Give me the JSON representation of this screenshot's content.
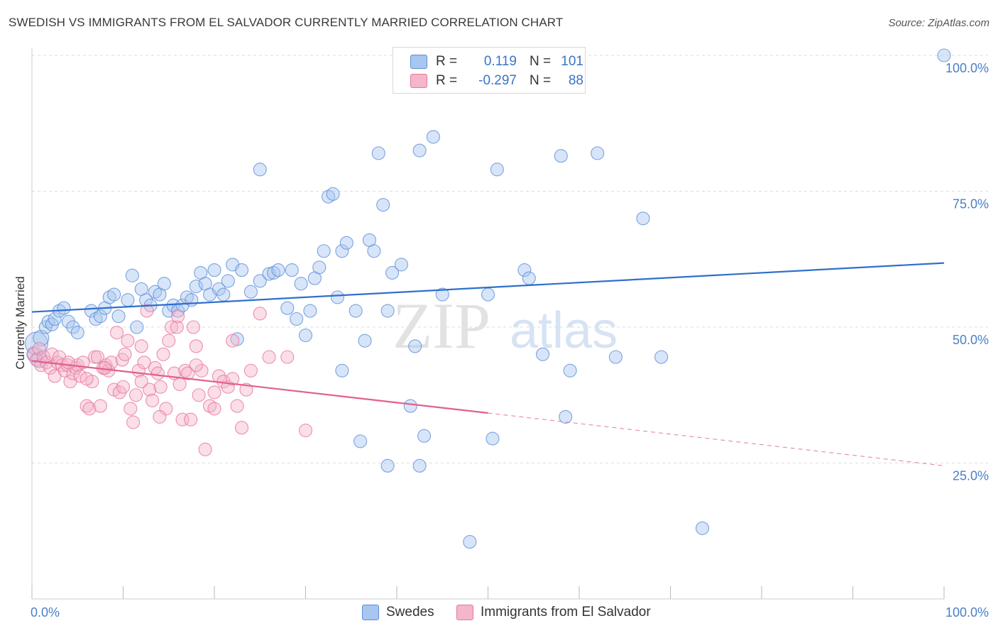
{
  "header": {
    "title": "SWEDISH VS IMMIGRANTS FROM EL SALVADOR CURRENTLY MARRIED CORRELATION CHART",
    "source": "Source: ZipAtlas.com"
  },
  "watermark": {
    "zip": "ZIP",
    "atlas": "atlas"
  },
  "legend": {
    "rows": [
      {
        "r_label": "R =",
        "r_value": "0.119",
        "n_label": "N =",
        "n_value": "101",
        "color": "#a8c6ef"
      },
      {
        "r_label": "R =",
        "r_value": "-0.297",
        "n_label": "N =",
        "n_value": "88",
        "color": "#f4b6cb"
      }
    ]
  },
  "bottom_legend": [
    {
      "label": "Swedes",
      "color": "#a8c6ef"
    },
    {
      "label": "Immigrants from El Salvador",
      "color": "#f4b6cb"
    }
  ],
  "chart_data": {
    "type": "scatter",
    "title": "SWEDISH VS IMMIGRANTS FROM EL SALVADOR CURRENTLY MARRIED CORRELATION CHART",
    "ylabel": "Currently Married",
    "xlabel": "",
    "xlim": [
      0,
      100
    ],
    "ylim": [
      0,
      100
    ],
    "x_tick_labels": [
      "0.0%",
      "100.0%"
    ],
    "y_ticks": [
      25,
      50,
      75,
      100
    ],
    "y_tick_labels": [
      "25.0%",
      "50.0%",
      "75.0%",
      "100.0%"
    ],
    "grid": "horizontal dashed",
    "legend_position": "top-center",
    "series": [
      {
        "name": "Swedes",
        "color": "#5b8fd8",
        "fill": "#a8c6ef",
        "trend": {
          "x": [
            0,
            100
          ],
          "y": [
            52.8,
            61.8
          ],
          "color": "#2f6fcc"
        },
        "points": [
          [
            0.3,
            45
          ],
          [
            0.5,
            47
          ],
          [
            0.8,
            44
          ],
          [
            1.0,
            48
          ],
          [
            1.5,
            50
          ],
          [
            1.8,
            51
          ],
          [
            2.2,
            50.5
          ],
          [
            2.5,
            51.5
          ],
          [
            3.0,
            53
          ],
          [
            3.5,
            53.5
          ],
          [
            4.0,
            51
          ],
          [
            4.5,
            50
          ],
          [
            5.0,
            49
          ],
          [
            6.5,
            53
          ],
          [
            7.0,
            51.5
          ],
          [
            7.5,
            52
          ],
          [
            8.0,
            53.5
          ],
          [
            8.5,
            55.5
          ],
          [
            9.0,
            56
          ],
          [
            9.5,
            52
          ],
          [
            10.5,
            55
          ],
          [
            11.0,
            59.5
          ],
          [
            11.5,
            50
          ],
          [
            12.0,
            57
          ],
          [
            12.5,
            55
          ],
          [
            13.0,
            54
          ],
          [
            13.5,
            56.5
          ],
          [
            14.0,
            56
          ],
          [
            14.5,
            58
          ],
          [
            15.0,
            53
          ],
          [
            15.5,
            54
          ],
          [
            16.0,
            53
          ],
          [
            16.5,
            54
          ],
          [
            17.0,
            55.5
          ],
          [
            17.5,
            55
          ],
          [
            18.0,
            57.5
          ],
          [
            18.5,
            60
          ],
          [
            19.0,
            58
          ],
          [
            19.5,
            56
          ],
          [
            20.0,
            60.5
          ],
          [
            20.5,
            57
          ],
          [
            21.0,
            56
          ],
          [
            21.5,
            58.5
          ],
          [
            22.0,
            61.5
          ],
          [
            22.5,
            47.8
          ],
          [
            23.0,
            60.5
          ],
          [
            24.0,
            56.5
          ],
          [
            25.0,
            58.5
          ],
          [
            26.0,
            59.8
          ],
          [
            26.5,
            60
          ],
          [
            27.0,
            60.5
          ],
          [
            28.0,
            53.5
          ],
          [
            28.5,
            60.5
          ],
          [
            29.0,
            51.5
          ],
          [
            29.5,
            58
          ],
          [
            30.0,
            48.5
          ],
          [
            30.5,
            53
          ],
          [
            31.0,
            59
          ],
          [
            31.5,
            61
          ],
          [
            32.0,
            64
          ],
          [
            32.5,
            74
          ],
          [
            33.0,
            74.5
          ],
          [
            33.5,
            55.5
          ],
          [
            34.0,
            64
          ],
          [
            34.5,
            65.5
          ],
          [
            35.5,
            53
          ],
          [
            36.5,
            47.5
          ],
          [
            37.0,
            66
          ],
          [
            37.5,
            64
          ],
          [
            38.0,
            82
          ],
          [
            38.5,
            72.5
          ],
          [
            39.0,
            53
          ],
          [
            39.5,
            60
          ],
          [
            40.5,
            61.5
          ],
          [
            41.5,
            35.5
          ],
          [
            42.0,
            46.5
          ],
          [
            42.5,
            82.5
          ],
          [
            43.0,
            30
          ],
          [
            44.0,
            85
          ],
          [
            45.0,
            56
          ],
          [
            48.0,
            10.5
          ],
          [
            50.0,
            56
          ],
          [
            50.5,
            29.5
          ],
          [
            51.0,
            79
          ],
          [
            54.0,
            60.5
          ],
          [
            54.5,
            59
          ],
          [
            56.0,
            45
          ],
          [
            58.0,
            81.5
          ],
          [
            58.5,
            33.5
          ],
          [
            59.0,
            42
          ],
          [
            62.0,
            82
          ],
          [
            64.0,
            44.5
          ],
          [
            67.0,
            70
          ],
          [
            69.0,
            44.5
          ],
          [
            73.5,
            13
          ],
          [
            100.0,
            100
          ],
          [
            25.0,
            79
          ],
          [
            34.0,
            42
          ],
          [
            36.0,
            29
          ],
          [
            39.0,
            24.5
          ],
          [
            42.5,
            24.5
          ]
        ]
      },
      {
        "name": "Immigrants from El Salvador",
        "color": "#e8769d",
        "fill": "#f4b6cb",
        "trend": {
          "x": [
            0,
            50
          ],
          "y": [
            43.8,
            34.2
          ],
          "color": "#e0608e"
        },
        "trend_extension": {
          "x": [
            50,
            100
          ],
          "y": [
            34.2,
            24.5
          ]
        },
        "points": [
          [
            0.2,
            45
          ],
          [
            0.5,
            44
          ],
          [
            0.8,
            46
          ],
          [
            1.0,
            43
          ],
          [
            1.3,
            44.5
          ],
          [
            1.6,
            43.5
          ],
          [
            2.0,
            42.5
          ],
          [
            2.2,
            45
          ],
          [
            2.5,
            41
          ],
          [
            2.8,
            43.5
          ],
          [
            3.0,
            44.5
          ],
          [
            3.3,
            43
          ],
          [
            3.6,
            42
          ],
          [
            3.9,
            43
          ],
          [
            4.2,
            40
          ],
          [
            4.5,
            41.5
          ],
          [
            4.8,
            42.5
          ],
          [
            5.0,
            43
          ],
          [
            5.3,
            41
          ],
          [
            5.6,
            43.5
          ],
          [
            6.0,
            35.5
          ],
          [
            6.3,
            35
          ],
          [
            6.6,
            40
          ],
          [
            6.9,
            44.5
          ],
          [
            7.2,
            44.5
          ],
          [
            7.5,
            35.5
          ],
          [
            7.8,
            42.5
          ],
          [
            8.1,
            43
          ],
          [
            8.4,
            42
          ],
          [
            8.7,
            43.5
          ],
          [
            9.0,
            38.5
          ],
          [
            9.3,
            49
          ],
          [
            9.6,
            38
          ],
          [
            9.9,
            44
          ],
          [
            10.2,
            45
          ],
          [
            10.5,
            47.5
          ],
          [
            10.8,
            35
          ],
          [
            11.1,
            32.5
          ],
          [
            11.4,
            37.5
          ],
          [
            11.7,
            42
          ],
          [
            12.0,
            46.5
          ],
          [
            12.3,
            43.5
          ],
          [
            12.6,
            53
          ],
          [
            12.9,
            38.5
          ],
          [
            13.2,
            36.5
          ],
          [
            13.5,
            42.5
          ],
          [
            13.8,
            41.5
          ],
          [
            14.1,
            39
          ],
          [
            14.4,
            45
          ],
          [
            14.7,
            35
          ],
          [
            15.0,
            47.5
          ],
          [
            15.3,
            50
          ],
          [
            15.6,
            41.5
          ],
          [
            15.9,
            50
          ],
          [
            16.2,
            39.5
          ],
          [
            16.5,
            33
          ],
          [
            16.8,
            42
          ],
          [
            17.1,
            41.5
          ],
          [
            17.4,
            33
          ],
          [
            17.7,
            50
          ],
          [
            18.0,
            46.5
          ],
          [
            18.3,
            37.5
          ],
          [
            18.6,
            42
          ],
          [
            19.0,
            27.5
          ],
          [
            19.5,
            35.5
          ],
          [
            20.0,
            35
          ],
          [
            20.5,
            41
          ],
          [
            21.0,
            40
          ],
          [
            21.5,
            39
          ],
          [
            22.0,
            47.5
          ],
          [
            22.5,
            35.5
          ],
          [
            23.0,
            31.5
          ],
          [
            23.5,
            38.5
          ],
          [
            24.0,
            42
          ],
          [
            25.0,
            52.5
          ],
          [
            26.0,
            44.5
          ],
          [
            28.0,
            44.5
          ],
          [
            30.0,
            31
          ],
          [
            12.0,
            40
          ],
          [
            14.0,
            33.5
          ],
          [
            16.0,
            52
          ],
          [
            18.0,
            43
          ],
          [
            20.0,
            38
          ],
          [
            22.0,
            40.5
          ],
          [
            6.0,
            40.5
          ],
          [
            8.0,
            42.5
          ],
          [
            10.0,
            39
          ],
          [
            4.0,
            43.5
          ]
        ]
      }
    ]
  }
}
